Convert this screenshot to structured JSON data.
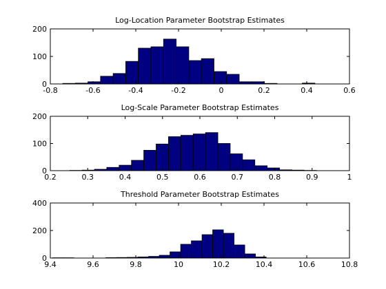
{
  "figure": {
    "background": "#ffffff",
    "bar_color": "#000080",
    "edge_color": "#000000"
  },
  "chart_data": [
    {
      "type": "bar",
      "title": "Log-Location Parameter Bootstrap Estimates",
      "xlim": [
        -0.8,
        0.6
      ],
      "ylim": [
        0,
        200
      ],
      "xticks": [
        -0.8,
        -0.6,
        -0.4,
        -0.2,
        0,
        0.2,
        0.4,
        0.6
      ],
      "xtick_labels": [
        "-0.8",
        "-0.6",
        "-0.4",
        "-0.2",
        "0",
        "0.2",
        "0.4",
        "0.6"
      ],
      "yticks": [
        0,
        100,
        200
      ],
      "ytick_labels": [
        "0",
        "100",
        "200"
      ],
      "bin_edges": [
        -0.742,
        -0.683,
        -0.624,
        -0.565,
        -0.506,
        -0.447,
        -0.388,
        -0.329,
        -0.27,
        -0.211,
        -0.152,
        -0.093,
        -0.034,
        0.025,
        0.084,
        0.143,
        0.202,
        0.261,
        0.32,
        0.379,
        0.438
      ],
      "counts": [
        2,
        3,
        8,
        28,
        38,
        82,
        130,
        135,
        163,
        135,
        85,
        92,
        45,
        35,
        8,
        8,
        2,
        0,
        0,
        3
      ]
    },
    {
      "type": "bar",
      "title": "Log-Scale Parameter Bootstrap Estimates",
      "xlim": [
        0.2,
        1.0
      ],
      "ylim": [
        0,
        200
      ],
      "xticks": [
        0.2,
        0.3,
        0.4,
        0.5,
        0.6,
        0.7,
        0.8,
        0.9,
        1.0
      ],
      "xtick_labels": [
        "0.2",
        "0.3",
        "0.4",
        "0.5",
        "0.6",
        "0.7",
        "0.8",
        "0.9",
        "1"
      ],
      "yticks": [
        0,
        100,
        200
      ],
      "ytick_labels": [
        "0",
        "100",
        "200"
      ],
      "bin_edges": [
        0.252,
        0.285,
        0.318,
        0.351,
        0.384,
        0.417,
        0.45,
        0.483,
        0.516,
        0.549,
        0.582,
        0.615,
        0.648,
        0.681,
        0.714,
        0.747,
        0.78,
        0.813,
        0.846,
        0.879,
        0.912
      ],
      "counts": [
        1,
        2,
        5,
        12,
        20,
        38,
        75,
        98,
        125,
        130,
        135,
        140,
        100,
        62,
        40,
        18,
        10,
        3,
        2,
        1
      ]
    },
    {
      "type": "bar",
      "title": "Threshold Parameter Bootstrap Estimates",
      "xlim": [
        9.4,
        10.8
      ],
      "ylim": [
        0,
        400
      ],
      "xticks": [
        9.4,
        9.6,
        9.8,
        10.0,
        10.2,
        10.4,
        10.6,
        10.8
      ],
      "xtick_labels": [
        "9.4",
        "9.6",
        "9.8",
        "10",
        "10.2",
        "10.4",
        "10.6",
        "10.8"
      ],
      "yticks": [
        0,
        200,
        400
      ],
      "ytick_labels": [
        "0",
        "200",
        "400"
      ],
      "bin_edges": [
        9.41,
        9.46,
        9.51,
        9.56,
        9.61,
        9.66,
        9.71,
        9.76,
        9.81,
        9.86,
        9.91,
        9.96,
        10.01,
        10.06,
        10.11,
        10.16,
        10.21,
        10.26,
        10.31,
        10.36,
        10.41
      ],
      "counts": [
        2,
        2,
        0,
        0,
        0,
        3,
        4,
        5,
        8,
        12,
        20,
        45,
        100,
        125,
        170,
        205,
        180,
        95,
        30,
        8
      ]
    }
  ]
}
